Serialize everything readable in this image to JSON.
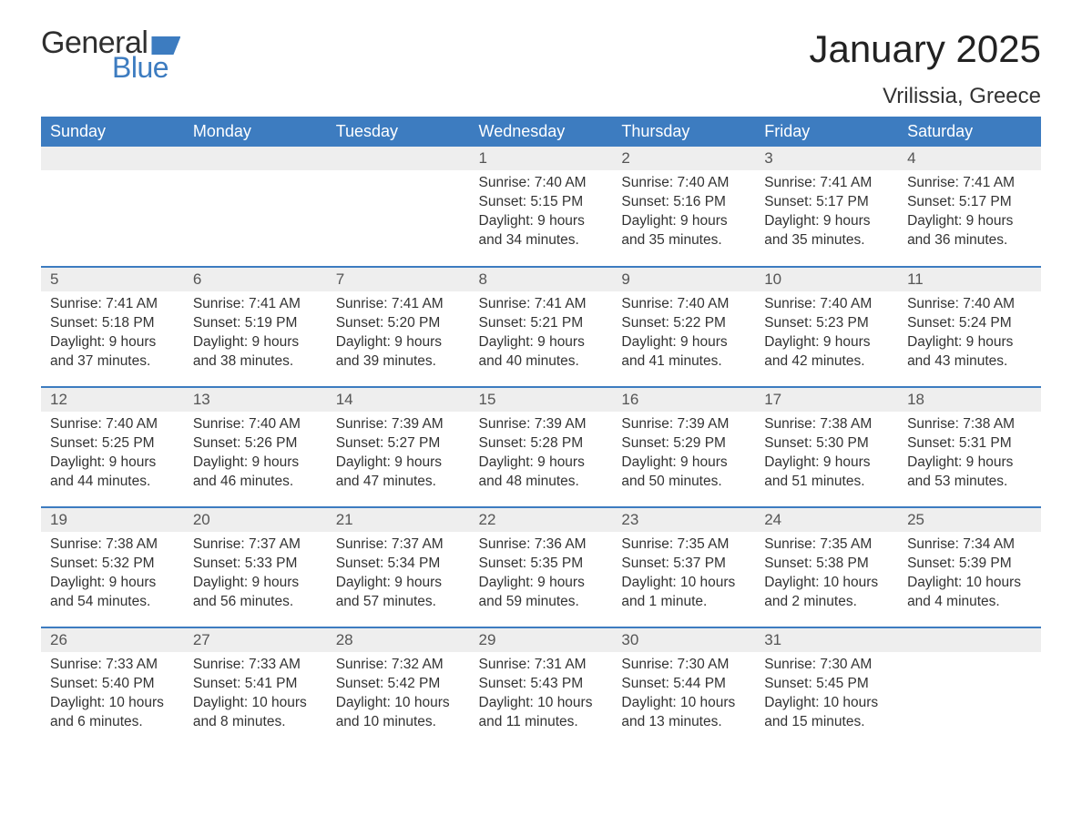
{
  "logo": {
    "word1": "General",
    "word2": "Blue"
  },
  "title": "January 2025",
  "location": "Vrilissia, Greece",
  "colors": {
    "brand_blue": "#3d7cc0",
    "header_bg": "#3d7cc0",
    "header_text": "#ffffff",
    "daynum_bg": "#eeeeee",
    "text": "#333333",
    "border": "#3d7cc0",
    "page_bg": "#ffffff"
  },
  "day_headers": [
    "Sunday",
    "Monday",
    "Tuesday",
    "Wednesday",
    "Thursday",
    "Friday",
    "Saturday"
  ],
  "weeks": [
    [
      null,
      null,
      null,
      {
        "n": "1",
        "sunrise": "Sunrise: 7:40 AM",
        "sunset": "Sunset: 5:15 PM",
        "day1": "Daylight: 9 hours",
        "day2": "and 34 minutes."
      },
      {
        "n": "2",
        "sunrise": "Sunrise: 7:40 AM",
        "sunset": "Sunset: 5:16 PM",
        "day1": "Daylight: 9 hours",
        "day2": "and 35 minutes."
      },
      {
        "n": "3",
        "sunrise": "Sunrise: 7:41 AM",
        "sunset": "Sunset: 5:17 PM",
        "day1": "Daylight: 9 hours",
        "day2": "and 35 minutes."
      },
      {
        "n": "4",
        "sunrise": "Sunrise: 7:41 AM",
        "sunset": "Sunset: 5:17 PM",
        "day1": "Daylight: 9 hours",
        "day2": "and 36 minutes."
      }
    ],
    [
      {
        "n": "5",
        "sunrise": "Sunrise: 7:41 AM",
        "sunset": "Sunset: 5:18 PM",
        "day1": "Daylight: 9 hours",
        "day2": "and 37 minutes."
      },
      {
        "n": "6",
        "sunrise": "Sunrise: 7:41 AM",
        "sunset": "Sunset: 5:19 PM",
        "day1": "Daylight: 9 hours",
        "day2": "and 38 minutes."
      },
      {
        "n": "7",
        "sunrise": "Sunrise: 7:41 AM",
        "sunset": "Sunset: 5:20 PM",
        "day1": "Daylight: 9 hours",
        "day2": "and 39 minutes."
      },
      {
        "n": "8",
        "sunrise": "Sunrise: 7:41 AM",
        "sunset": "Sunset: 5:21 PM",
        "day1": "Daylight: 9 hours",
        "day2": "and 40 minutes."
      },
      {
        "n": "9",
        "sunrise": "Sunrise: 7:40 AM",
        "sunset": "Sunset: 5:22 PM",
        "day1": "Daylight: 9 hours",
        "day2": "and 41 minutes."
      },
      {
        "n": "10",
        "sunrise": "Sunrise: 7:40 AM",
        "sunset": "Sunset: 5:23 PM",
        "day1": "Daylight: 9 hours",
        "day2": "and 42 minutes."
      },
      {
        "n": "11",
        "sunrise": "Sunrise: 7:40 AM",
        "sunset": "Sunset: 5:24 PM",
        "day1": "Daylight: 9 hours",
        "day2": "and 43 minutes."
      }
    ],
    [
      {
        "n": "12",
        "sunrise": "Sunrise: 7:40 AM",
        "sunset": "Sunset: 5:25 PM",
        "day1": "Daylight: 9 hours",
        "day2": "and 44 minutes."
      },
      {
        "n": "13",
        "sunrise": "Sunrise: 7:40 AM",
        "sunset": "Sunset: 5:26 PM",
        "day1": "Daylight: 9 hours",
        "day2": "and 46 minutes."
      },
      {
        "n": "14",
        "sunrise": "Sunrise: 7:39 AM",
        "sunset": "Sunset: 5:27 PM",
        "day1": "Daylight: 9 hours",
        "day2": "and 47 minutes."
      },
      {
        "n": "15",
        "sunrise": "Sunrise: 7:39 AM",
        "sunset": "Sunset: 5:28 PM",
        "day1": "Daylight: 9 hours",
        "day2": "and 48 minutes."
      },
      {
        "n": "16",
        "sunrise": "Sunrise: 7:39 AM",
        "sunset": "Sunset: 5:29 PM",
        "day1": "Daylight: 9 hours",
        "day2": "and 50 minutes."
      },
      {
        "n": "17",
        "sunrise": "Sunrise: 7:38 AM",
        "sunset": "Sunset: 5:30 PM",
        "day1": "Daylight: 9 hours",
        "day2": "and 51 minutes."
      },
      {
        "n": "18",
        "sunrise": "Sunrise: 7:38 AM",
        "sunset": "Sunset: 5:31 PM",
        "day1": "Daylight: 9 hours",
        "day2": "and 53 minutes."
      }
    ],
    [
      {
        "n": "19",
        "sunrise": "Sunrise: 7:38 AM",
        "sunset": "Sunset: 5:32 PM",
        "day1": "Daylight: 9 hours",
        "day2": "and 54 minutes."
      },
      {
        "n": "20",
        "sunrise": "Sunrise: 7:37 AM",
        "sunset": "Sunset: 5:33 PM",
        "day1": "Daylight: 9 hours",
        "day2": "and 56 minutes."
      },
      {
        "n": "21",
        "sunrise": "Sunrise: 7:37 AM",
        "sunset": "Sunset: 5:34 PM",
        "day1": "Daylight: 9 hours",
        "day2": "and 57 minutes."
      },
      {
        "n": "22",
        "sunrise": "Sunrise: 7:36 AM",
        "sunset": "Sunset: 5:35 PM",
        "day1": "Daylight: 9 hours",
        "day2": "and 59 minutes."
      },
      {
        "n": "23",
        "sunrise": "Sunrise: 7:35 AM",
        "sunset": "Sunset: 5:37 PM",
        "day1": "Daylight: 10 hours",
        "day2": "and 1 minute."
      },
      {
        "n": "24",
        "sunrise": "Sunrise: 7:35 AM",
        "sunset": "Sunset: 5:38 PM",
        "day1": "Daylight: 10 hours",
        "day2": "and 2 minutes."
      },
      {
        "n": "25",
        "sunrise": "Sunrise: 7:34 AM",
        "sunset": "Sunset: 5:39 PM",
        "day1": "Daylight: 10 hours",
        "day2": "and 4 minutes."
      }
    ],
    [
      {
        "n": "26",
        "sunrise": "Sunrise: 7:33 AM",
        "sunset": "Sunset: 5:40 PM",
        "day1": "Daylight: 10 hours",
        "day2": "and 6 minutes."
      },
      {
        "n": "27",
        "sunrise": "Sunrise: 7:33 AM",
        "sunset": "Sunset: 5:41 PM",
        "day1": "Daylight: 10 hours",
        "day2": "and 8 minutes."
      },
      {
        "n": "28",
        "sunrise": "Sunrise: 7:32 AM",
        "sunset": "Sunset: 5:42 PM",
        "day1": "Daylight: 10 hours",
        "day2": "and 10 minutes."
      },
      {
        "n": "29",
        "sunrise": "Sunrise: 7:31 AM",
        "sunset": "Sunset: 5:43 PM",
        "day1": "Daylight: 10 hours",
        "day2": "and 11 minutes."
      },
      {
        "n": "30",
        "sunrise": "Sunrise: 7:30 AM",
        "sunset": "Sunset: 5:44 PM",
        "day1": "Daylight: 10 hours",
        "day2": "and 13 minutes."
      },
      {
        "n": "31",
        "sunrise": "Sunrise: 7:30 AM",
        "sunset": "Sunset: 5:45 PM",
        "day1": "Daylight: 10 hours",
        "day2": "and 15 minutes."
      },
      null
    ]
  ]
}
